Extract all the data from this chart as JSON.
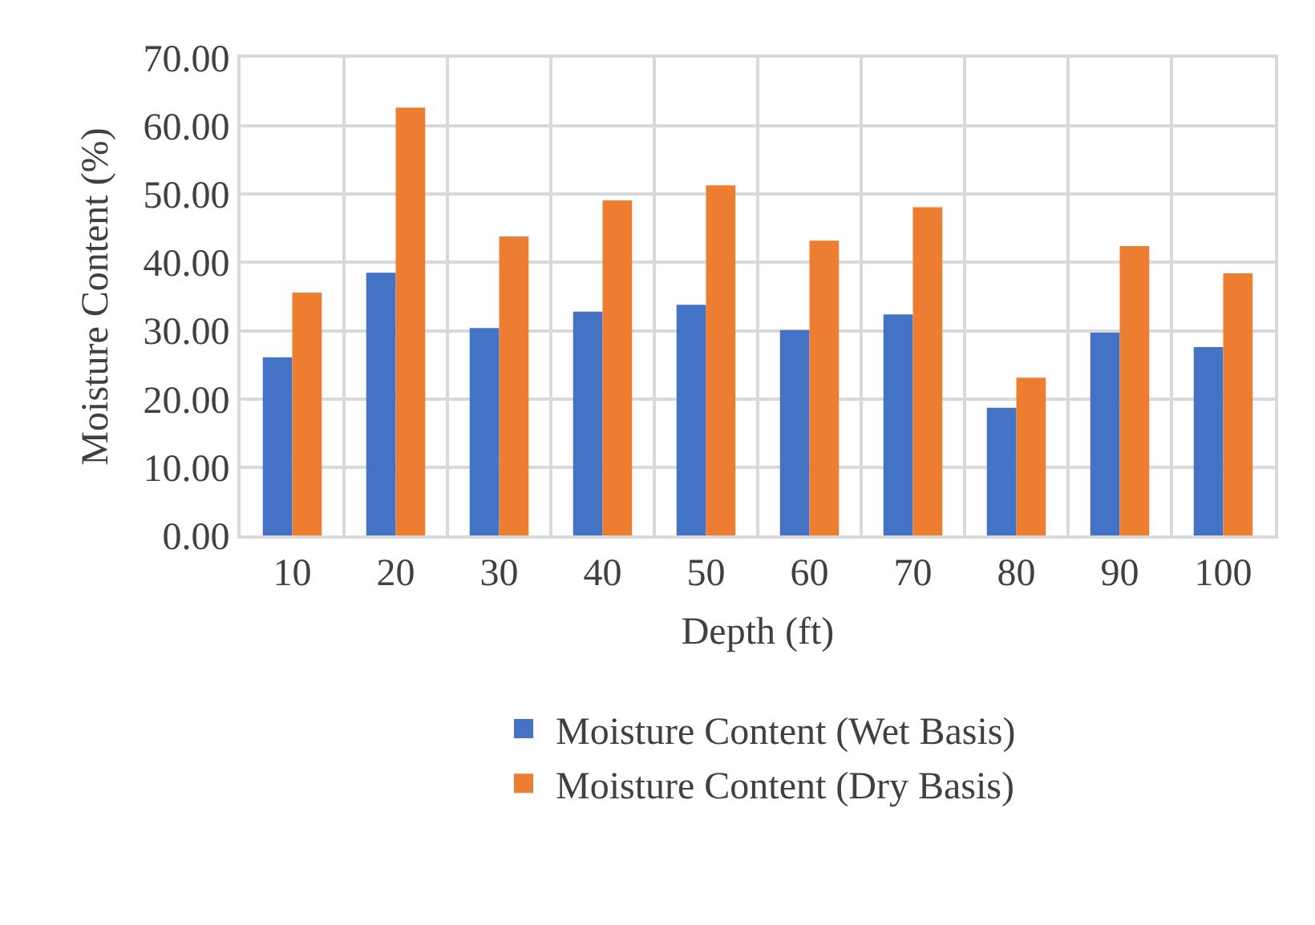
{
  "chart_data": {
    "type": "bar",
    "xlabel": "Depth (ft)",
    "ylabel": "Moisture Content (%)",
    "categories": [
      "10",
      "20",
      "30",
      "40",
      "50",
      "60",
      "70",
      "80",
      "90",
      "100"
    ],
    "series": [
      {
        "name": "Moisture Content (Wet Basis)",
        "color": "#4472c4",
        "values": [
          26.1,
          38.5,
          30.4,
          32.8,
          33.8,
          30.1,
          32.4,
          18.7,
          29.7,
          27.6
        ]
      },
      {
        "name": "Moisture Content (Dry Basis)",
        "color": "#ed7d31",
        "values": [
          35.6,
          62.7,
          43.8,
          49.1,
          51.3,
          43.2,
          48.1,
          23.1,
          42.4,
          38.4
        ]
      }
    ],
    "ylim": [
      0,
      70
    ],
    "yticks": [
      {
        "value": 0,
        "label": "0.00"
      },
      {
        "value": 10,
        "label": "10.00"
      },
      {
        "value": 20,
        "label": "20.00"
      },
      {
        "value": 30,
        "label": "30.00"
      },
      {
        "value": 40,
        "label": "40.00"
      },
      {
        "value": 50,
        "label": "50.00"
      },
      {
        "value": 60,
        "label": "60.00"
      },
      {
        "value": 70,
        "label": "70.00"
      }
    ],
    "grid": true,
    "legend": "bottom"
  }
}
